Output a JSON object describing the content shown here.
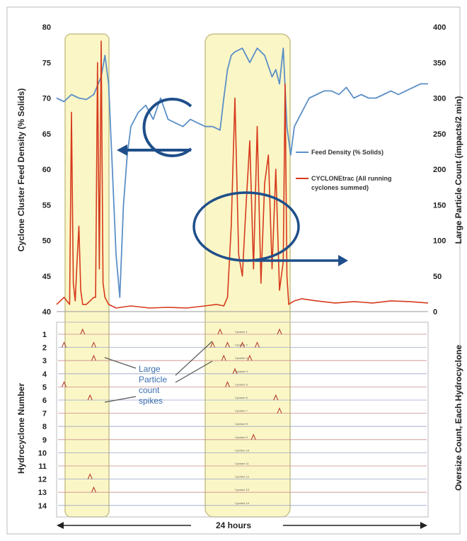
{
  "chart_data": [
    {
      "type": "line",
      "title": "",
      "xlabel": "",
      "ylabel": "Cyclone Cluster Feed Density (% Solids)",
      "y2label": "Large Particle Count (impacts/2 min)",
      "ylim": [
        40,
        80
      ],
      "y2lim": [
        0,
        400
      ],
      "yticks": [
        "80",
        "75",
        "70",
        "65",
        "60",
        "55",
        "50",
        "45",
        "40"
      ],
      "y2ticks": [
        "400",
        "350",
        "300",
        "250",
        "200",
        "150",
        "100",
        "50",
        "0"
      ],
      "legend_position": "right",
      "grid": false,
      "series": [
        {
          "name": "Feed Density (% Solids)",
          "axis": "left",
          "color": "#5b8fc7",
          "x": [
            0,
            0.02,
            0.04,
            0.06,
            0.08,
            0.1,
            0.12,
            0.13,
            0.14,
            0.15,
            0.16,
            0.17,
            0.18,
            0.19,
            0.2,
            0.22,
            0.24,
            0.26,
            0.28,
            0.3,
            0.32,
            0.34,
            0.36,
            0.38,
            0.4,
            0.42,
            0.44,
            0.45,
            0.46,
            0.47,
            0.48,
            0.5,
            0.52,
            0.54,
            0.56,
            0.58,
            0.59,
            0.6,
            0.61,
            0.62,
            0.63,
            0.64,
            0.66,
            0.68,
            0.7,
            0.72,
            0.74,
            0.76,
            0.78,
            0.8,
            0.82,
            0.84,
            0.86,
            0.88,
            0.9,
            0.92,
            0.94,
            0.96,
            0.98,
            1.0
          ],
          "values": [
            70,
            69.5,
            70.5,
            70,
            69.8,
            70.5,
            73,
            76,
            72,
            60,
            48,
            42,
            55,
            62,
            66,
            68,
            69,
            67,
            70,
            67,
            66.5,
            66,
            67,
            66.5,
            66,
            66,
            65.5,
            70,
            74,
            76,
            76.5,
            77,
            75,
            77,
            76,
            73,
            74,
            72,
            77,
            66,
            62,
            66,
            68,
            70,
            70.5,
            71,
            71,
            70.5,
            71.5,
            70,
            70.5,
            70,
            70,
            70.5,
            71,
            70.5,
            71,
            71.5,
            72,
            72
          ]
        },
        {
          "name": "CYCLONEtrac (All running cyclones summed)",
          "axis": "right",
          "color": "#d63a1c",
          "x": [
            0,
            0.02,
            0.035,
            0.04,
            0.045,
            0.05,
            0.055,
            0.06,
            0.065,
            0.07,
            0.08,
            0.09,
            0.1,
            0.105,
            0.11,
            0.115,
            0.12,
            0.125,
            0.13,
            0.14,
            0.16,
            0.2,
            0.25,
            0.3,
            0.35,
            0.4,
            0.43,
            0.45,
            0.46,
            0.47,
            0.48,
            0.49,
            0.5,
            0.51,
            0.52,
            0.53,
            0.54,
            0.55,
            0.56,
            0.57,
            0.58,
            0.59,
            0.6,
            0.61,
            0.615,
            0.62,
            0.625,
            0.63,
            0.64,
            0.66,
            0.7,
            0.75,
            0.8,
            0.85,
            0.9,
            0.95,
            1.0
          ],
          "values": [
            10,
            20,
            10,
            280,
            40,
            15,
            70,
            120,
            30,
            10,
            10,
            15,
            20,
            20,
            350,
            60,
            380,
            40,
            20,
            10,
            5,
            8,
            5,
            6,
            5,
            8,
            10,
            8,
            20,
            120,
            300,
            80,
            50,
            150,
            240,
            60,
            260,
            40,
            180,
            220,
            60,
            200,
            30,
            70,
            320,
            50,
            10,
            12,
            15,
            18,
            15,
            12,
            14,
            12,
            15,
            14,
            12
          ]
        }
      ],
      "annotations": [],
      "highlight_boxes": 2
    },
    {
      "type": "line",
      "title": "",
      "xlabel": "24 hours",
      "ylabel": "Hydrocyclone Number",
      "y2label": "Oversize Count, Each Hydrocyclone",
      "categories": [
        "1",
        "2",
        "3",
        "4",
        "5",
        "6",
        "7",
        "8",
        "9",
        "10",
        "11",
        "12",
        "13",
        "14"
      ],
      "annotations": [
        "Large",
        "Particle",
        "count",
        "spikes"
      ],
      "row_labels": [
        "Cyclone 1",
        "Cyclone 2",
        "Cyclone 3",
        "Cyclone 4",
        "Cyclone 5",
        "Cyclone 6",
        "Cyclone 7",
        "Cyclone 8",
        "Cyclone 9",
        "Cyclone 10",
        "Cyclone 11",
        "Cyclone 12",
        "Cyclone 13",
        "Cyclone 14"
      ],
      "spikes": [
        {
          "row": 1,
          "x": [
            0.07,
            0.44,
            0.6
          ]
        },
        {
          "row": 2,
          "x": [
            0.02,
            0.1,
            0.42,
            0.46,
            0.5,
            0.54
          ]
        },
        {
          "row": 3,
          "x": [
            0.1,
            0.45,
            0.52
          ]
        },
        {
          "row": 4,
          "x": [
            0.48
          ]
        },
        {
          "row": 5,
          "x": [
            0.02,
            0.46
          ]
        },
        {
          "row": 6,
          "x": [
            0.09,
            0.59
          ]
        },
        {
          "row": 7,
          "x": [
            0.6
          ]
        },
        {
          "row": 9,
          "x": [
            0.53
          ]
        },
        {
          "row": 12,
          "x": [
            0.09
          ]
        },
        {
          "row": 13,
          "x": [
            0.1
          ]
        }
      ]
    }
  ]
}
